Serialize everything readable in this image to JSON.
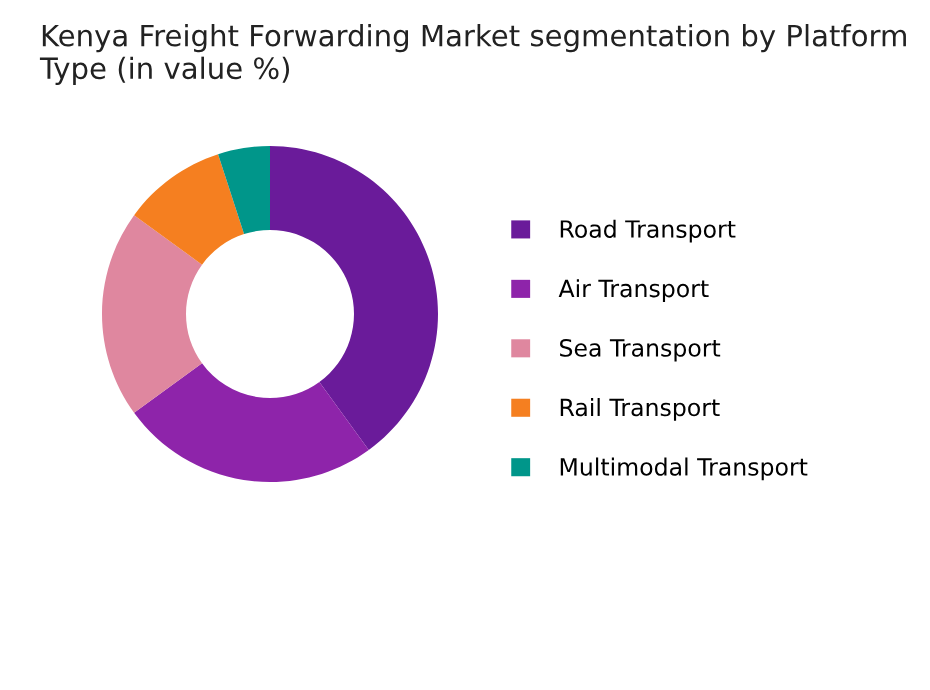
{
  "chart_data": {
    "type": "donut",
    "title": "Kenya Freight Forwarding Market segmentation by Platform Type (in value %)",
    "categories": [
      "Road Transport",
      "Air Transport",
      "Sea Transport",
      "Rail Transport",
      "Multimodal Transport"
    ],
    "values": [
      40,
      25,
      20,
      10,
      5
    ],
    "colors": [
      "#6a1b9a",
      "#8e24aa",
      "#df879f",
      "#f57f20",
      "#00968a"
    ],
    "legend": "right"
  }
}
